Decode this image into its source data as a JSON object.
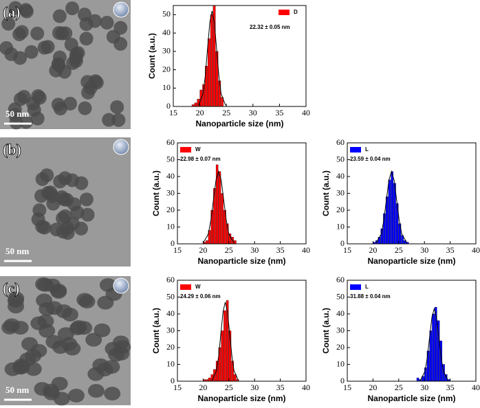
{
  "panels": [
    {
      "label": "(a)",
      "scale_bar": "50 nm"
    },
    {
      "label": "(b)",
      "scale_bar": "50 nm"
    },
    {
      "label": "(c)",
      "scale_bar": "50 nm"
    }
  ],
  "chart_data": [
    {
      "type": "histogram",
      "xlabel": "Nanoparticle size (nm)",
      "ylabel": "Count (a.u.)",
      "annotation": "22.32 ± 0.05 nm",
      "legend": "upper right",
      "series": [
        {
          "name": "D",
          "color": "#ff0000",
          "bins": [
            18.5,
            19,
            19.5,
            20,
            20.5,
            21,
            21.5,
            22,
            22.5,
            23,
            23.5,
            24,
            24.5
          ],
          "values": [
            1,
            2,
            4,
            9,
            12,
            22,
            37,
            50,
            55,
            30,
            14,
            5
          ]
        }
      ],
      "fit": {
        "color": "#000000",
        "x": [
          19.75,
          20.6,
          21.03,
          21.45,
          21.88,
          22.3,
          22.73,
          23.15,
          23.58,
          24,
          24.85
        ],
        "values": [
          0.6,
          7,
          16.9,
          31.6,
          45.9,
          52,
          45.9,
          31.6,
          16.9,
          7,
          0.6
        ]
      },
      "xlim": [
        15,
        40
      ],
      "xticks": [
        15,
        20,
        25,
        30,
        35,
        40
      ],
      "ylim": [
        0,
        55
      ],
      "yticks": [
        0,
        10,
        20,
        30,
        40,
        50
      ]
    },
    {
      "type": "histogram",
      "xlabel": "Nanoparticle size (nm)",
      "ylabel": "Count (a.u.)",
      "annotation": "22.98 ± 0.07 nm",
      "legend": "upper left",
      "series": [
        {
          "name": "W",
          "color": "#ff0000",
          "bins": [
            20,
            20.5,
            21,
            21.5,
            22,
            22.5,
            23,
            23.5,
            24,
            24.5,
            25,
            25.5,
            26,
            26.5
          ],
          "values": [
            1,
            2,
            8,
            20,
            33,
            47,
            43,
            30,
            20,
            12,
            6,
            4,
            2
          ]
        }
      ],
      "fit": {
        "color": "#000000",
        "x": [
          20,
          21,
          21.5,
          22,
          22.5,
          23,
          23.5,
          24,
          24.5,
          25,
          26
        ],
        "values": [
          0.5,
          5.8,
          14,
          26.1,
          37.9,
          43,
          37.9,
          26.1,
          14,
          5.8,
          0.5
        ]
      },
      "xlim": [
        15,
        40
      ],
      "xticks": [
        15,
        20,
        25,
        30,
        35,
        40
      ],
      "ylim": [
        0,
        60
      ],
      "yticks": [
        0,
        10,
        20,
        30,
        40,
        50,
        60
      ]
    },
    {
      "type": "histogram",
      "xlabel": "Nanoparticle size (nm)",
      "ylabel": "Count (a.u.)",
      "annotation": "23.59 ± 0.04 nm",
      "legend": "upper left",
      "series": [
        {
          "name": "L",
          "color": "#0000ff",
          "bins": [
            20,
            20.5,
            21,
            21.5,
            22,
            22.5,
            23,
            23.5,
            24,
            24.5,
            25,
            25.5,
            26,
            26.5,
            27
          ],
          "values": [
            1,
            2,
            4,
            9,
            18,
            28,
            38,
            43,
            36,
            24,
            12,
            5,
            2,
            1
          ]
        }
      ],
      "fit": {
        "color": "#000000",
        "x": [
          20.6,
          21.6,
          22.1,
          22.6,
          23.1,
          23.6,
          24.1,
          24.6,
          25.1,
          25.6,
          26.6
        ],
        "values": [
          0.5,
          5.8,
          14,
          26.1,
          37.9,
          43,
          37.9,
          26.1,
          14,
          5.8,
          0.5
        ]
      },
      "xlim": [
        15,
        40
      ],
      "xticks": [
        15,
        20,
        25,
        30,
        35,
        40
      ],
      "ylim": [
        0,
        60
      ],
      "yticks": [
        0,
        10,
        20,
        30,
        40,
        50,
        60
      ]
    },
    {
      "type": "histogram",
      "xlabel": "Nanoparticle size (nm)",
      "ylabel": "Count (a.u.)",
      "annotation": "24.29 ± 0.06 nm",
      "legend": "upper left",
      "series": [
        {
          "name": "W",
          "color": "#ff0000",
          "bins": [
            20,
            20.5,
            21,
            21.5,
            22,
            22.5,
            23,
            23.5,
            24,
            24.5,
            25,
            25.5,
            26,
            26.5,
            27
          ],
          "values": [
            1,
            1,
            2,
            4,
            7,
            12,
            20,
            30,
            42,
            48,
            30,
            12,
            4,
            1
          ]
        }
      ],
      "fit": {
        "color": "#000000",
        "x": [
          21.75,
          22.6,
          23.03,
          23.45,
          23.88,
          24.3,
          24.73,
          25.15,
          25.58,
          26,
          26.85
        ],
        "values": [
          0.5,
          6.3,
          15.3,
          28.5,
          41.5,
          47,
          41.5,
          28.5,
          15.3,
          6.3,
          0.5
        ]
      },
      "xlim": [
        15,
        40
      ],
      "xticks": [
        15,
        20,
        25,
        30,
        35,
        40
      ],
      "ylim": [
        0,
        60
      ],
      "yticks": [
        0,
        10,
        20,
        30,
        40,
        50,
        60
      ]
    },
    {
      "type": "histogram",
      "xlabel": "Nanoparticle size (nm)",
      "ylabel": "Count (a.u.)",
      "annotation": "31.88 ± 0.04 nm",
      "legend": "upper left",
      "series": [
        {
          "name": "L",
          "color": "#0000ff",
          "bins": [
            28.5,
            29,
            29.5,
            30,
            30.5,
            31,
            31.5,
            32,
            32.5,
            33,
            33.5,
            34,
            34.5,
            35
          ],
          "values": [
            2,
            1,
            3,
            8,
            18,
            30,
            40,
            44,
            36,
            24,
            10,
            4,
            1
          ]
        }
      ],
      "fit": {
        "color": "#000000",
        "x": [
          29.2,
          30.1,
          30.55,
          31,
          31.45,
          31.9,
          32.35,
          32.8,
          33.25,
          33.7,
          34.6
        ],
        "values": [
          0.5,
          5.8,
          14,
          26.1,
          37.9,
          43,
          37.9,
          26.1,
          14,
          5.8,
          0.5
        ]
      },
      "xlim": [
        15,
        40
      ],
      "xticks": [
        15,
        20,
        25,
        30,
        35,
        40
      ],
      "ylim": [
        0,
        60
      ],
      "yticks": [
        0,
        10,
        20,
        30,
        40,
        50,
        60
      ]
    }
  ]
}
